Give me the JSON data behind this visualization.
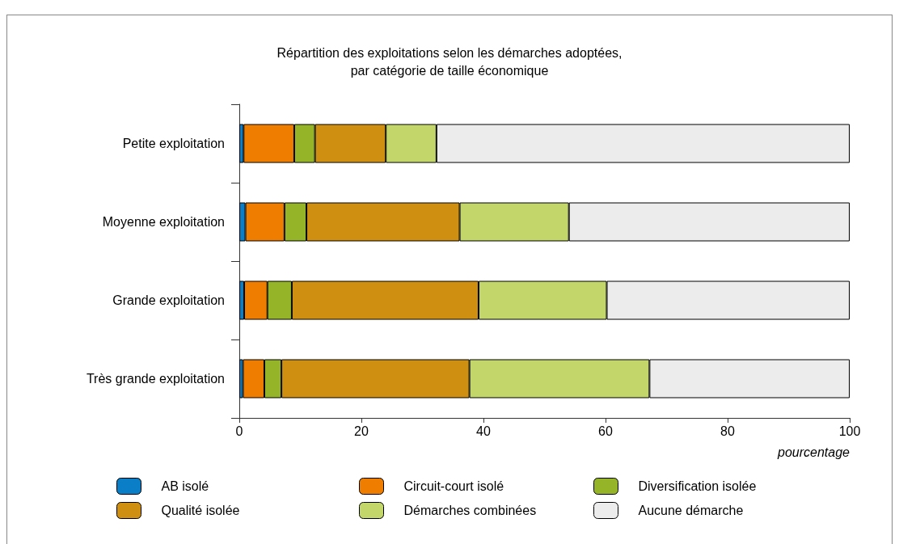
{
  "chart_data": {
    "type": "bar",
    "orientation": "horizontal",
    "stacked": true,
    "title": "Répartition des exploitations selon les démarches adoptées,\npar catégorie de taille économique",
    "xlabel": "pourcentage",
    "categories": [
      "Petite exploitation",
      "Moyenne exploitation",
      "Grande exploitation",
      "Très grande exploitation"
    ],
    "series": [
      {
        "name": "AB isolé",
        "color": "#0a7fc8",
        "values": [
          0.7,
          1.0,
          0.8,
          0.6
        ]
      },
      {
        "name": "Circuit-court isolé",
        "color": "#ef7d00",
        "values": [
          8.3,
          6.4,
          3.8,
          3.5
        ]
      },
      {
        "name": "Diversification isolée",
        "color": "#95b427",
        "values": [
          3.4,
          3.6,
          4.0,
          2.8
        ]
      },
      {
        "name": "Qualité isolée",
        "color": "#cf9012",
        "values": [
          11.6,
          25.1,
          30.6,
          30.8
        ]
      },
      {
        "name": "Démarches combinées",
        "color": "#c2d66a",
        "values": [
          8.3,
          17.9,
          21.0,
          29.5
        ]
      },
      {
        "name": "Aucune démarche",
        "color": "#ececec",
        "values": [
          67.7,
          46.0,
          39.8,
          32.8
        ]
      }
    ],
    "xlim": [
      0,
      100
    ],
    "xticks": [
      0,
      20,
      40,
      60,
      80,
      100
    ],
    "grid": false,
    "legend": "bottom"
  }
}
